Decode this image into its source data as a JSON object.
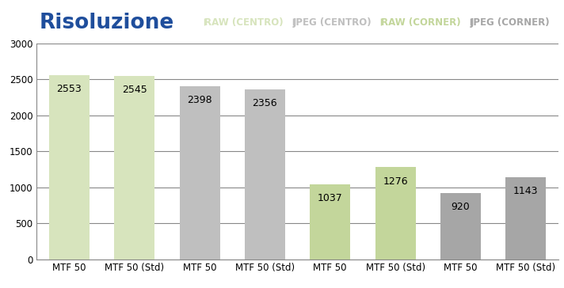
{
  "chart_data": {
    "type": "bar",
    "title": "Risoluzione",
    "categories": [
      "MTF 50",
      "MTF 50 (Std)",
      "MTF 50",
      "MTF 50 (Std)",
      "MTF 50",
      "MTF 50 (Std)",
      "MTF 50",
      "MTF 50 (Std)"
    ],
    "series": [
      {
        "name": "RAW (CENTRO)",
        "color": "#d7e4bd",
        "values": [
          2553,
          2545,
          null,
          null,
          null,
          null,
          null,
          null
        ]
      },
      {
        "name": "JPEG (CENTRO)",
        "color": "#bfbfbf",
        "values": [
          null,
          null,
          2398,
          2356,
          null,
          null,
          null,
          null
        ]
      },
      {
        "name": "RAW (CORNER)",
        "color": "#c3d69b",
        "values": [
          null,
          null,
          null,
          null,
          1037,
          1276,
          null,
          null
        ]
      },
      {
        "name": "JPEG (CORNER)",
        "color": "#a6a6a6",
        "values": [
          null,
          null,
          null,
          null,
          null,
          null,
          920,
          1143
        ]
      }
    ],
    "ylim": [
      0,
      3000
    ],
    "yticks": [
      0,
      500,
      1000,
      1500,
      2000,
      2500,
      3000
    ],
    "grid": true,
    "legend": "upper right",
    "data_labels": true
  }
}
